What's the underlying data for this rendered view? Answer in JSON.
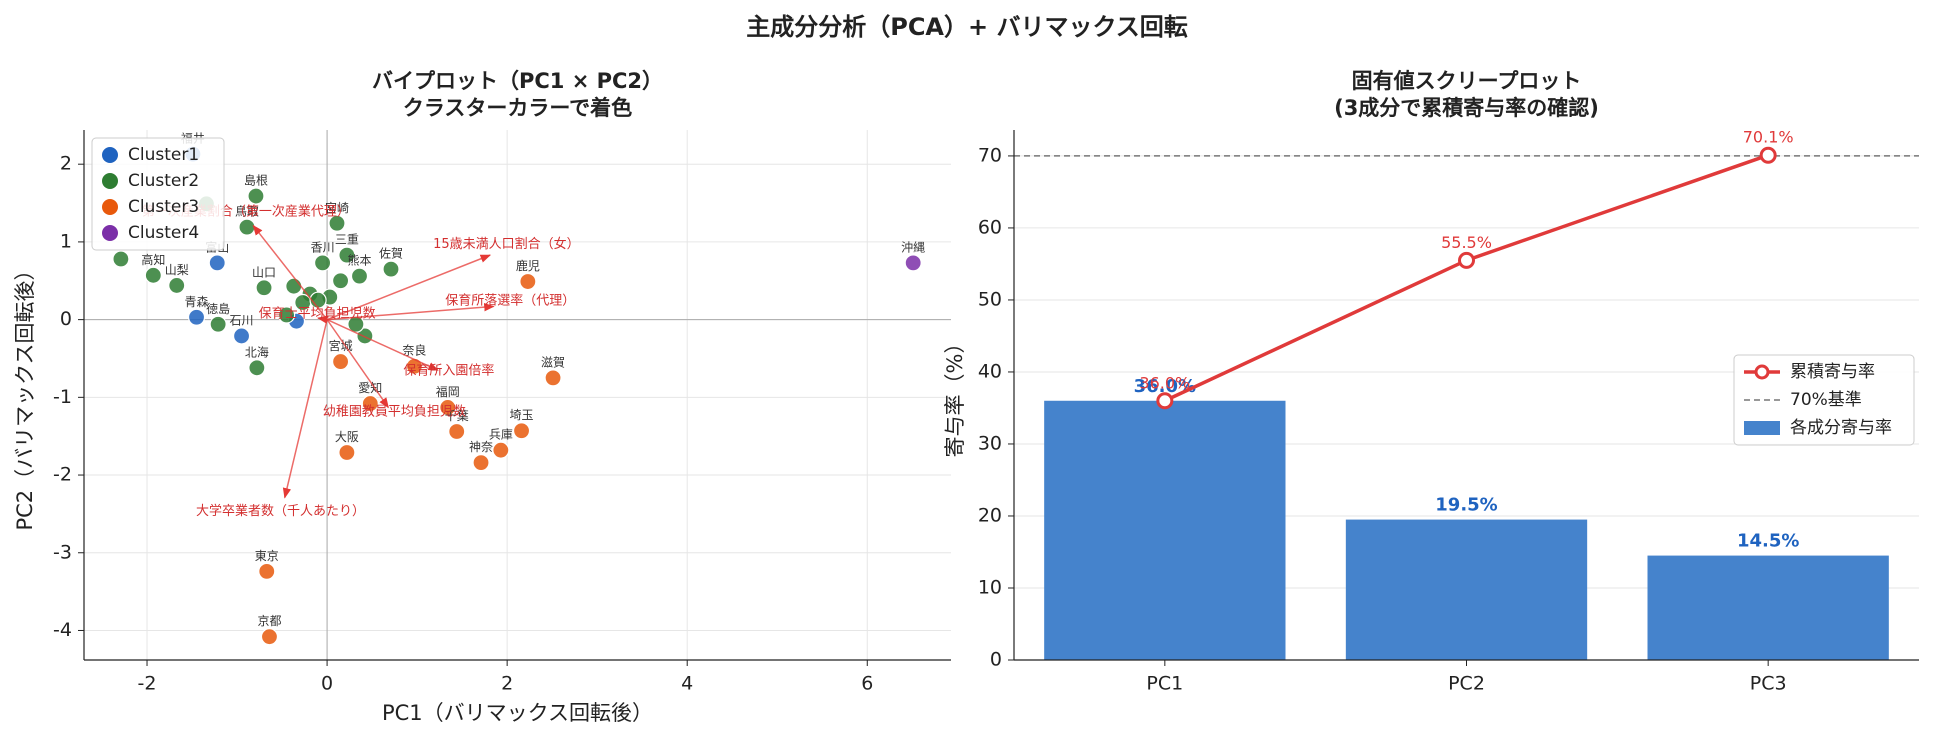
{
  "title": "主成分分析（PCA）+ バリマックス回転",
  "chart_data": [
    {
      "type": "scatter",
      "title": [
        "バイプロット（PC1 × PC2）",
        "クラスターカラーで着色"
      ],
      "xlabel": "PC1（バリマックス回転後）",
      "ylabel": "PC2（バリマックス回転後）",
      "xlim": [
        -2.7,
        6.93
      ],
      "ylim": [
        -4.38,
        2.44
      ],
      "xticks": [
        -2,
        0,
        2,
        4,
        6
      ],
      "yticks": [
        -4,
        -3,
        -2,
        -1,
        0,
        1,
        2
      ],
      "grid": true,
      "zero_lines": true,
      "legend": "upper left",
      "series": [
        {
          "name": "Cluster1",
          "color": "#1f63c0",
          "x": [
            -1.49,
            -1.22,
            -1.45,
            -0.95,
            -0.34
          ],
          "values": [
            2.13,
            0.73,
            0.03,
            -0.21,
            -0.02
          ],
          "labels": [
            "福井",
            "富山",
            "青森",
            "石川",
            null
          ]
        },
        {
          "name": "Cluster2",
          "color": "#2e7d32",
          "x": [
            -0.79,
            -0.89,
            0.11,
            0.22,
            0.71,
            0.36,
            -0.05,
            -0.7,
            -1.93,
            -1.67,
            -1.21,
            -0.78,
            -2.29,
            -1.34,
            0.42,
            0.32,
            0.03,
            -0.19,
            -0.37,
            -0.27,
            -0.45,
            -0.1,
            0.15
          ],
          "values": [
            1.59,
            1.19,
            1.24,
            0.83,
            0.65,
            0.56,
            0.73,
            0.41,
            0.57,
            0.44,
            -0.06,
            -0.62,
            0.78,
            1.49,
            -0.21,
            -0.06,
            0.29,
            0.33,
            0.43,
            0.22,
            0.06,
            0.25,
            0.5
          ],
          "labels": [
            "島根",
            "鳥取",
            "宮崎",
            "三重",
            "佐賀",
            "熊本",
            "香川",
            "山口",
            "高知",
            "山梨",
            "徳島",
            "北海",
            null,
            null,
            null,
            null,
            null,
            null,
            null,
            null,
            null,
            null,
            null
          ]
        },
        {
          "name": "Cluster3",
          "color": "#e8590c",
          "x": [
            2.23,
            2.51,
            0.97,
            0.15,
            0.48,
            1.34,
            1.44,
            2.16,
            1.93,
            1.71,
            0.22,
            -0.67,
            -0.64
          ],
          "values": [
            0.49,
            -0.75,
            -0.6,
            -0.54,
            -1.08,
            -1.13,
            -1.44,
            -1.43,
            -1.68,
            -1.84,
            -1.71,
            -3.24,
            -4.08
          ],
          "labels": [
            "鹿児",
            "滋賀",
            "奈良",
            "宮城",
            "愛知",
            "福岡",
            "千葉",
            "埼玉",
            "兵庫",
            "神奈",
            "大阪",
            "東京",
            "京都"
          ]
        },
        {
          "name": "Cluster4",
          "color": "#7b2fa8",
          "x": [
            6.51
          ],
          "values": [
            0.73
          ],
          "labels": [
            "沖縄"
          ]
        }
      ],
      "arrows": [
        {
          "label": "15歳未満人口割合（女）",
          "x": 1.81,
          "y": 0.83
        },
        {
          "label": "保育所落選率（代理）",
          "x": 1.85,
          "y": 0.17
        },
        {
          "label": "保育所入園倍率",
          "x": 1.23,
          "y": -0.65
        },
        {
          "label": "幼稚園教員平均負担児数",
          "x": 0.68,
          "y": -1.13
        },
        {
          "label": "大学卒業者数（千人あたり）",
          "x": -0.47,
          "y": -2.29
        },
        {
          "label": "保育士平均負担児数",
          "x": -0.1,
          "y": 0.02
        },
        {
          "label": "第一次産業割合（第一次産業代理）",
          "x": -0.82,
          "y": 1.21
        }
      ]
    },
    {
      "type": "bar",
      "title": [
        "固有値スクリープロット",
        "(3成分で累積寄与率の確認)"
      ],
      "ylabel": "寄与率（%）",
      "categories": [
        "PC1",
        "PC2",
        "PC3"
      ],
      "ylim": [
        0,
        73.6
      ],
      "yticks": [
        0,
        10,
        20,
        30,
        40,
        50,
        60,
        70
      ],
      "grid": true,
      "legend": "center right",
      "series": [
        {
          "name": "各成分寄与率",
          "type": "bar",
          "color": "#4583cc",
          "label_color": "#1f63c0",
          "values": [
            36.0,
            19.5,
            14.5
          ],
          "value_labels": [
            "36.0%",
            "19.5%",
            "14.5%"
          ]
        },
        {
          "name": "累積寄与率",
          "type": "line",
          "color": "#e03a3a",
          "values": [
            36.0,
            55.5,
            70.1
          ],
          "value_labels": [
            "36.0%",
            "55.5%",
            "70.1%"
          ]
        }
      ],
      "reference": {
        "value": 70,
        "label": "70%基準",
        "color": "#777777"
      }
    }
  ]
}
